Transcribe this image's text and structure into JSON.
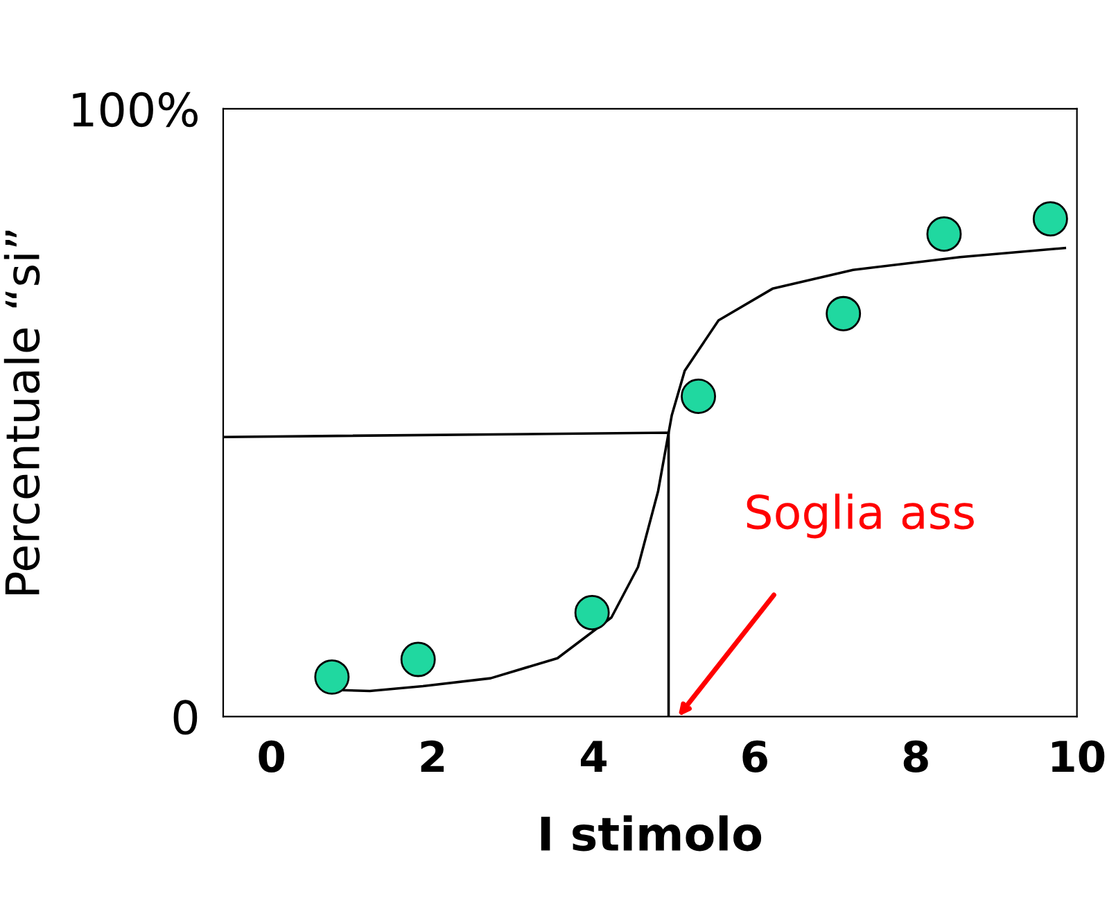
{
  "chart_data": {
    "type": "scatter",
    "xlabel": "I stimolo",
    "ylabel": "Percentuale “si”",
    "xlim": [
      -0.6,
      10
    ],
    "ylim": [
      0,
      100
    ],
    "xticks": [
      0,
      2,
      4,
      6,
      8,
      10
    ],
    "yticks": [
      0,
      {
        "value": 100,
        "label": "100%"
      }
    ],
    "grid": false,
    "legend": false,
    "marker": "circle",
    "series": [
      {
        "color": "#20d8a0",
        "x": [
          0.75,
          1.82,
          3.98,
          5.3,
          7.1,
          8.35,
          9.67
        ],
        "values": [
          6.5,
          9.4,
          17.1,
          52.7,
          66.3,
          79.4,
          81.9
        ]
      },
      {
        "type": "line",
        "color": "#000000",
        "marker": "none",
        "x": [
          0.72,
          1.22,
          1.88,
          2.72,
          3.55,
          4.22,
          4.55,
          4.8,
          4.97,
          5.13,
          5.55,
          6.22,
          7.22,
          8.55,
          9.85
        ],
        "values": [
          4.4,
          4.2,
          5.0,
          6.3,
          9.6,
          16.3,
          24.6,
          37.1,
          49.6,
          56.9,
          65.2,
          70.4,
          73.5,
          75.6,
          77.1
        ]
      },
      {
        "type": "line",
        "color": "#000000",
        "marker": "none",
        "x": [
          -0.6,
          4.93,
          4.93
        ],
        "values": [
          46,
          46.7,
          0
        ]
      }
    ],
    "annotations": [
      "Soglia ass"
    ]
  }
}
